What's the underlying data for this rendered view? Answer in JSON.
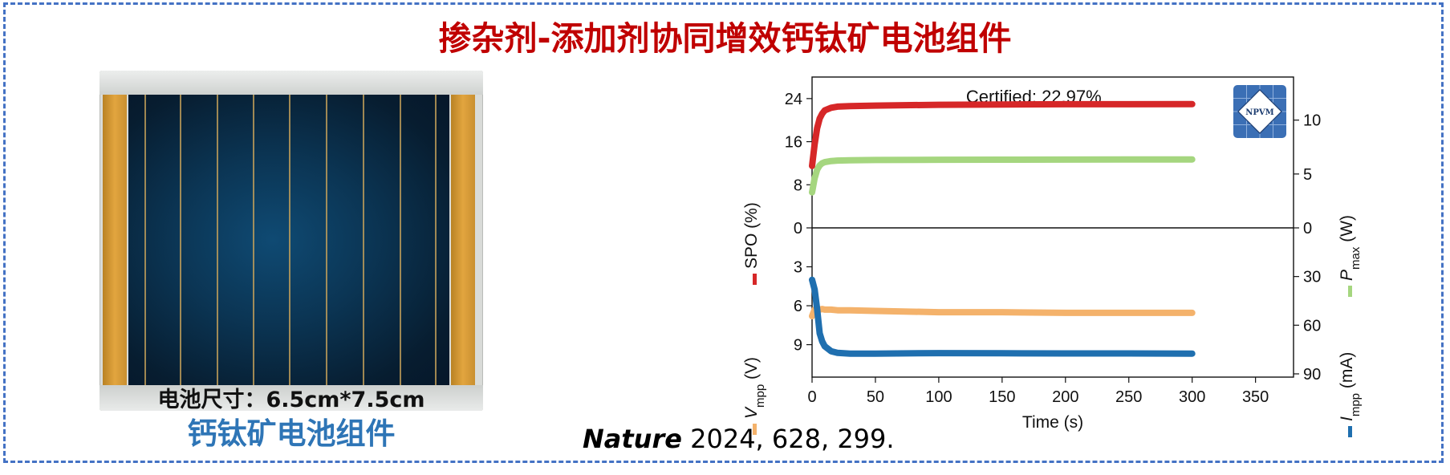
{
  "slide": {
    "title": "掺杂剂-添加剂协同增效钙钛矿电池组件",
    "frame_color": "#4472C4",
    "title_color": "#C00000"
  },
  "photo": {
    "caption": "电池尺寸：6.5cm*7.5cm",
    "label": "钙钛矿电池组件",
    "label_color": "#2E75B6"
  },
  "citation": {
    "journal": "Nature",
    "details": " 2024, 628, 299."
  },
  "logo": {
    "text": "NPVM",
    "color": "#3B6FB5"
  },
  "chart_data": [
    {
      "type": "line",
      "panel": "top",
      "annotation": "Certified: 22.97%",
      "x": [
        0,
        2,
        4,
        6,
        8,
        10,
        15,
        20,
        30,
        50,
        100,
        150,
        200,
        250,
        300
      ],
      "xlim": [
        0,
        380
      ],
      "ylim_left": [
        0,
        28
      ],
      "yticks_left": [
        0,
        8,
        16,
        24
      ],
      "ylim_right": [
        0,
        14
      ],
      "yticks_right": [
        0,
        5,
        10
      ],
      "ylabel_left": "SPO (%)",
      "ylabel_right": {
        "base": "P",
        "sub": "max",
        "unit": " (W)"
      },
      "grid": false,
      "series": [
        {
          "name": "SPO",
          "axis": "left",
          "color": "#D62728",
          "values": [
            11.5,
            15.5,
            18.5,
            20.3,
            21.2,
            21.8,
            22.3,
            22.5,
            22.6,
            22.7,
            22.85,
            22.9,
            22.95,
            22.95,
            22.97
          ]
        },
        {
          "name": "Pmax",
          "axis": "right",
          "color": "#A5D67F",
          "values": [
            3.3,
            4.6,
            5.4,
            5.8,
            6.0,
            6.1,
            6.2,
            6.25,
            6.28,
            6.3,
            6.32,
            6.33,
            6.34,
            6.35,
            6.35
          ]
        }
      ]
    },
    {
      "type": "line",
      "panel": "bottom",
      "x": [
        0,
        2,
        4,
        6,
        8,
        10,
        15,
        20,
        30,
        50,
        100,
        150,
        200,
        250,
        300
      ],
      "xlim": [
        0,
        380
      ],
      "xticks": [
        0,
        50,
        100,
        150,
        200,
        250,
        300,
        350
      ],
      "xlabel": "Time (s)",
      "ylim_left": [
        0,
        11.5
      ],
      "yticks_left": [
        3,
        6,
        9
      ],
      "ylim_right": [
        0,
        92
      ],
      "yticks_right": [
        30,
        60,
        90
      ],
      "ylabel_left": {
        "base": "V",
        "sub": "mpp",
        "unit": " (V)"
      },
      "ylabel_right": {
        "base": "I",
        "sub": "mpp",
        "unit": " (mA)"
      },
      "grid": false,
      "series": [
        {
          "name": "Vmpp",
          "axis": "left",
          "color": "#F4B26B",
          "values": [
            6.8,
            6.3,
            6.25,
            6.3,
            6.25,
            6.3,
            6.3,
            6.35,
            6.35,
            6.4,
            6.5,
            6.5,
            6.55,
            6.55,
            6.55
          ]
        },
        {
          "name": "Impp",
          "axis": "right",
          "color": "#1F6FAF",
          "values": [
            32,
            38,
            50,
            65,
            70,
            73,
            76,
            77,
            77.5,
            77.5,
            77.2,
            77.3,
            77.4,
            77.4,
            77.5
          ]
        }
      ]
    }
  ]
}
